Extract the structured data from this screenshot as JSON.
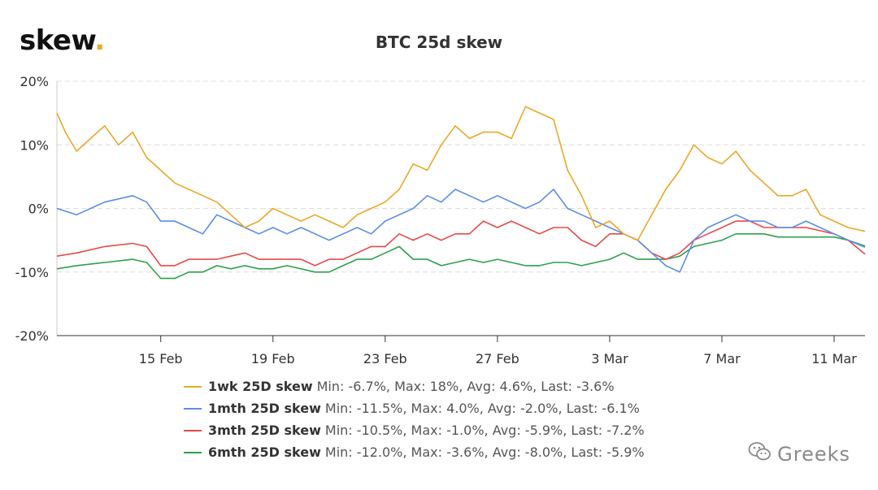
{
  "logo": {
    "text": "skew",
    "dot": "."
  },
  "watermark": {
    "icon": "wechat-icon",
    "text": "Greeks"
  },
  "chart_data": {
    "type": "line",
    "title": "BTC 25d skew",
    "xlabel": "",
    "ylabel": "",
    "ylim": [
      -20,
      20
    ],
    "y_ticks": [
      20,
      10,
      0,
      -10,
      -20
    ],
    "y_tick_labels": [
      "20%",
      "10%",
      "0%",
      "-10%",
      "-20%"
    ],
    "x_range": [
      11.3,
      40.1
    ],
    "x_ticks": [
      15,
      19,
      23,
      27,
      31,
      35,
      39
    ],
    "x_tick_labels": [
      "15 Feb",
      "19 Feb",
      "23 Feb",
      "27 Feb",
      "3 Mar",
      "7 Mar",
      "11 Mar"
    ],
    "x_unit_note": "day index: Feb day number, Mar d = 28 + d",
    "grid": {
      "y": true,
      "x": false
    },
    "legend_position": "bottom",
    "series": [
      {
        "name": "1wk 25D skew",
        "stats": "Min: -6.7%, Max: 18%, Avg: 4.6%, Last: -3.6%",
        "color": "#e9a929",
        "x": [
          11.3,
          11.6,
          12,
          12.5,
          13,
          13.5,
          14,
          14.5,
          15,
          15.5,
          16,
          16.5,
          17,
          17.5,
          18,
          18.5,
          19,
          19.5,
          20,
          20.5,
          21,
          21.5,
          22,
          22.5,
          23,
          23.5,
          24,
          24.5,
          25,
          25.5,
          26,
          26.5,
          27,
          27.5,
          28,
          28.5,
          29,
          29.5,
          30,
          30.5,
          31,
          31.5,
          32,
          32.5,
          33,
          33.5,
          34,
          34.5,
          35,
          35.5,
          36,
          36.5,
          37,
          37.5,
          38,
          38.5,
          39,
          39.5,
          40.1
        ],
        "y": [
          15,
          12,
          9,
          11,
          13,
          10,
          12,
          8,
          6,
          4,
          3,
          2,
          1,
          -1,
          -3,
          -2,
          0,
          -1,
          -2,
          -1,
          -2,
          -3,
          -1,
          0,
          1,
          3,
          7,
          6,
          10,
          13,
          11,
          12,
          12,
          11,
          16,
          15,
          14,
          6,
          2,
          -3,
          -2,
          -4,
          -5,
          -1,
          3,
          6,
          10,
          8,
          7,
          9,
          6,
          4,
          2,
          2,
          3,
          -1,
          -2,
          -3,
          -3.6
        ]
      },
      {
        "name": "1mth 25D skew",
        "stats": "Min: -11.5%, Max: 4.0%, Avg: -2.0%, Last: -6.1%",
        "color": "#5b8ee6",
        "x": [
          11.3,
          12,
          13,
          14,
          14.5,
          15,
          15.5,
          16,
          16.5,
          17,
          17.5,
          18,
          18.5,
          19,
          19.5,
          20,
          20.5,
          21,
          21.5,
          22,
          22.5,
          23,
          23.5,
          24,
          24.5,
          25,
          25.5,
          26,
          26.5,
          27,
          27.5,
          28,
          28.5,
          29,
          29.5,
          30,
          30.5,
          31,
          31.5,
          32,
          32.5,
          33,
          33.5,
          34,
          34.5,
          35,
          35.5,
          36,
          36.5,
          37,
          37.5,
          38,
          38.5,
          39,
          39.5,
          40.1
        ],
        "y": [
          0,
          -1,
          1,
          2,
          1,
          -2,
          -2,
          -3,
          -4,
          -1,
          -2,
          -3,
          -4,
          -3,
          -4,
          -3,
          -4,
          -5,
          -4,
          -3,
          -4,
          -2,
          -1,
          0,
          2,
          1,
          3,
          2,
          1,
          2,
          1,
          0,
          1,
          3,
          0,
          -1,
          -2,
          -3,
          -4,
          -5,
          -7,
          -9,
          -10,
          -5,
          -3,
          -2,
          -1,
          -2,
          -2,
          -3,
          -3,
          -2,
          -3,
          -4,
          -5,
          -6.1
        ]
      },
      {
        "name": "3mth 25D skew",
        "stats": "Min: -10.5%, Max: -1.0%, Avg: -5.9%, Last: -7.2%",
        "color": "#e84a4a",
        "x": [
          11.3,
          12,
          13,
          14,
          14.5,
          15,
          15.5,
          16,
          16.5,
          17,
          17.5,
          18,
          18.5,
          19,
          19.5,
          20,
          20.5,
          21,
          21.5,
          22,
          22.5,
          23,
          23.5,
          24,
          24.5,
          25,
          25.5,
          26,
          26.5,
          27,
          27.5,
          28,
          28.5,
          29,
          29.5,
          30,
          30.5,
          31,
          31.5,
          32,
          32.5,
          33,
          33.5,
          34,
          34.5,
          35,
          35.5,
          36,
          36.5,
          37,
          37.5,
          38,
          38.5,
          39,
          39.5,
          40.1
        ],
        "y": [
          -7.5,
          -7,
          -6,
          -5.5,
          -6,
          -9,
          -9,
          -8,
          -8,
          -8,
          -7.5,
          -7,
          -8,
          -8,
          -8,
          -8,
          -9,
          -8,
          -8,
          -7,
          -6,
          -6,
          -4,
          -5,
          -4,
          -5,
          -4,
          -4,
          -2,
          -3,
          -2,
          -3,
          -4,
          -3,
          -3,
          -5,
          -6,
          -4,
          -4,
          -5,
          -7,
          -8,
          -7,
          -5,
          -4,
          -3,
          -2,
          -2,
          -3,
          -3,
          -3,
          -3,
          -3.5,
          -4,
          -5,
          -7.2
        ]
      },
      {
        "name": "6mth 25D skew",
        "stats": "Min: -12.0%, Max: -3.6%, Avg: -8.0%, Last: -5.9%",
        "color": "#2ea04f",
        "x": [
          11.3,
          12,
          13,
          14,
          14.5,
          15,
          15.5,
          16,
          16.5,
          17,
          17.5,
          18,
          18.5,
          19,
          19.5,
          20,
          20.5,
          21,
          21.5,
          22,
          22.5,
          23,
          23.5,
          24,
          24.5,
          25,
          25.5,
          26,
          26.5,
          27,
          27.5,
          28,
          28.5,
          29,
          29.5,
          30,
          30.5,
          31,
          31.5,
          32,
          32.5,
          33,
          33.5,
          34,
          34.5,
          35,
          35.5,
          36,
          36.5,
          37,
          37.5,
          38,
          38.5,
          39,
          39.5,
          40.1
        ],
        "y": [
          -9.5,
          -9,
          -8.5,
          -8,
          -8.5,
          -11,
          -11,
          -10,
          -10,
          -9,
          -9.5,
          -9,
          -9.5,
          -9.5,
          -9,
          -9.5,
          -10,
          -10,
          -9,
          -8,
          -8,
          -7,
          -6,
          -8,
          -8,
          -9,
          -8.5,
          -8,
          -8.5,
          -8,
          -8.5,
          -9,
          -9,
          -8.5,
          -8.5,
          -9,
          -8.5,
          -8,
          -7,
          -8,
          -8,
          -8,
          -7.5,
          -6,
          -5.5,
          -5,
          -4,
          -4,
          -4,
          -4.5,
          -4.5,
          -4.5,
          -4.5,
          -4.5,
          -5,
          -5.9
        ]
      }
    ]
  }
}
